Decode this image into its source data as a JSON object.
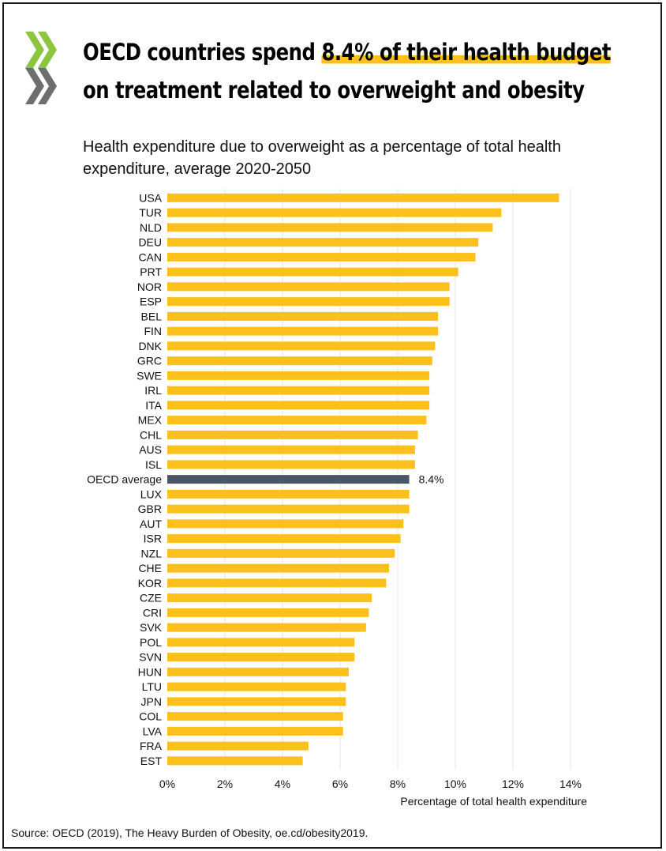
{
  "title": {
    "before": "OECD countries spend ",
    "highlight": "8.4% of their health budget",
    "line2": "on treatment related to overweight and obesity"
  },
  "subtitle": "Health expenditure due to overweight as a percentage of total health expenditure, average 2020-2050",
  "source": "Source: OECD (2019), The Heavy Burden of Obesity, oe.cd/obesity2019.",
  "colors": {
    "bar": "#fbc01b",
    "highlight_bar": "#4a5568",
    "grid": "#e4e4e4",
    "logo_green": "#8cc63f",
    "logo_grey": "#6d6e70"
  },
  "chart_data": {
    "type": "bar",
    "orientation": "horizontal",
    "categories": [
      "USA",
      "TUR",
      "NLD",
      "DEU",
      "CAN",
      "PRT",
      "NOR",
      "ESP",
      "BEL",
      "FIN",
      "DNK",
      "GRC",
      "SWE",
      "IRL",
      "ITA",
      "MEX",
      "CHL",
      "AUS",
      "ISL",
      "OECD average",
      "LUX",
      "GBR",
      "AUT",
      "ISR",
      "NZL",
      "CHE",
      "KOR",
      "CZE",
      "CRI",
      "SVK",
      "POL",
      "SVN",
      "HUN",
      "LTU",
      "JPN",
      "COL",
      "LVA",
      "FRA",
      "EST"
    ],
    "values": [
      13.6,
      11.6,
      11.3,
      10.8,
      10.7,
      10.1,
      9.8,
      9.8,
      9.4,
      9.4,
      9.3,
      9.2,
      9.1,
      9.1,
      9.1,
      9.0,
      8.7,
      8.6,
      8.6,
      8.4,
      8.4,
      8.4,
      8.2,
      8.1,
      7.9,
      7.7,
      7.6,
      7.1,
      7.0,
      6.9,
      6.5,
      6.5,
      6.3,
      6.2,
      6.2,
      6.1,
      6.1,
      4.9,
      4.7
    ],
    "highlight_category": "OECD average",
    "highlight_label": "8.4%",
    "xlim": [
      0,
      14
    ],
    "xticks": [
      "0%",
      "2%",
      "4%",
      "6%",
      "8%",
      "10%",
      "12%",
      "14%"
    ],
    "xlabel": "Percentage of total health expenditure",
    "ylabel": "",
    "grid": true
  }
}
